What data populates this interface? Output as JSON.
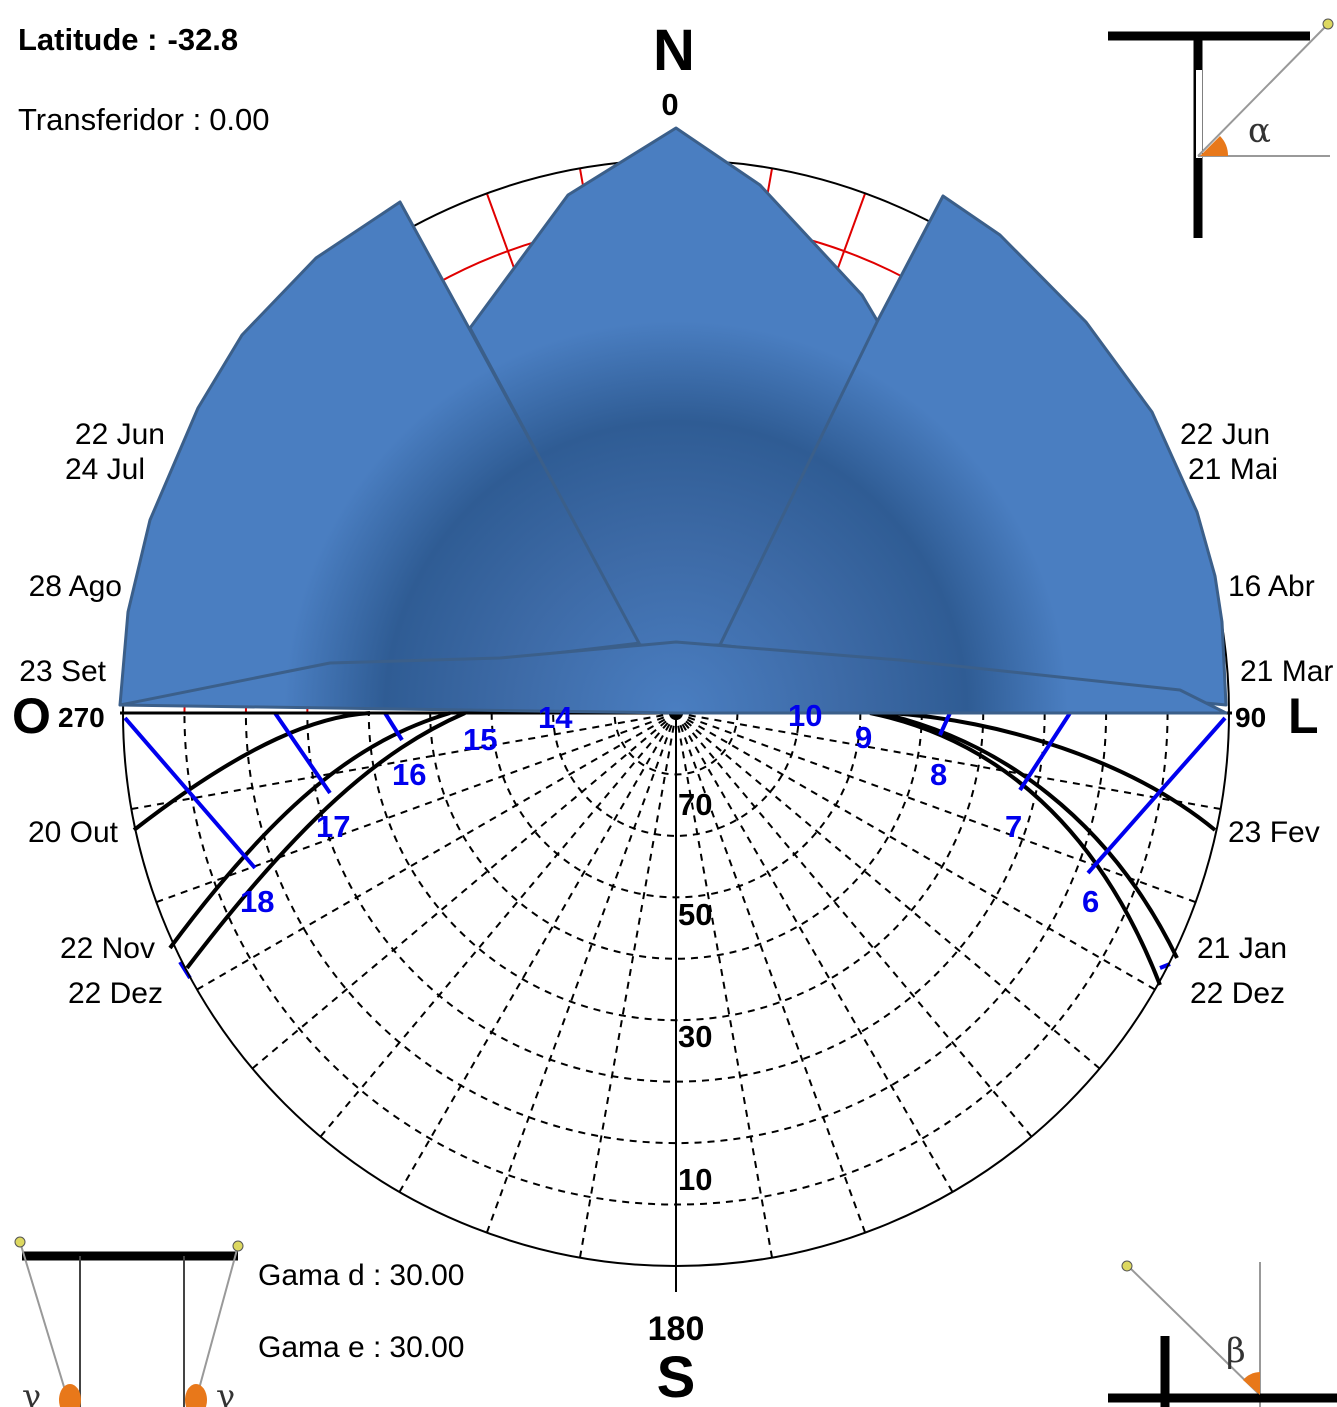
{
  "header": {
    "latitude_label": "Latitude :",
    "latitude_value": "-32.8",
    "transferidor_label": "Transferidor :",
    "transferidor_value": "0.00"
  },
  "compass": {
    "north": "N",
    "south": "S",
    "east": "L",
    "west": "O",
    "deg_north": "0",
    "deg_south": "180",
    "deg_east": "90",
    "deg_west": "270"
  },
  "altitude_labels": [
    "70",
    "50",
    "30",
    "10"
  ],
  "date_labels": {
    "left": [
      "22 Jun",
      "24 Jul",
      "28 Ago",
      "23 Set",
      "20 Out",
      "22 Nov",
      "22 Dez"
    ],
    "right": [
      "22 Jun",
      "21 Mai",
      "16 Abr",
      "21 Mar",
      "23 Fev",
      "21 Jan",
      "22 Dez"
    ]
  },
  "hour_labels": [
    "15",
    "14",
    "16",
    "17",
    "18",
    "10",
    "9",
    "8",
    "7",
    "6"
  ],
  "gama": {
    "d_label": "Gama d :",
    "d_value": "30.00",
    "e_label": "Gama e :",
    "e_value": "30.00"
  },
  "angle_symbols": {
    "alpha": "α",
    "beta": "β",
    "gamma": "γ"
  },
  "colors": {
    "mask": "#4a7ec1",
    "mask_dark": "#2f5c94",
    "mask_edge": "#3b5f8a",
    "hour_lines": "#0000ee",
    "red_grid": "#e00000",
    "marker": "#e8781a"
  }
}
